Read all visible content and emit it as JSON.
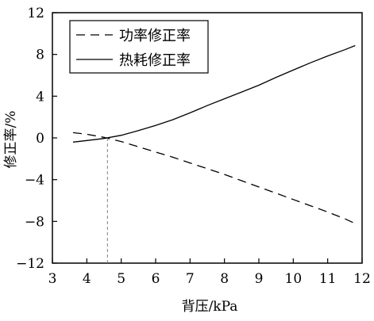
{
  "chart_data": {
    "type": "line",
    "xlabel": "背压/kPa",
    "ylabel": "修正率/%",
    "xlim": [
      3,
      12
    ],
    "ylim": [
      -12,
      12
    ],
    "xticks": [
      3,
      4,
      5,
      6,
      7,
      8,
      9,
      10,
      11,
      12
    ],
    "yticks": [
      -12,
      -8,
      -4,
      0,
      4,
      8,
      12
    ],
    "xtick_labels": [
      "3",
      "4",
      "5",
      "6",
      "7",
      "8",
      "9",
      "10",
      "11",
      "12"
    ],
    "ytick_labels": [
      "−12",
      "−8",
      "−4",
      "0",
      "4",
      "8",
      "12"
    ],
    "grid": false,
    "legend_position": "top-left",
    "series": [
      {
        "name": "功率修正率",
        "style": "dashed",
        "color": "#000000",
        "x": [
          3.6,
          4.0,
          4.5,
          5.0,
          5.5,
          6.0,
          6.5,
          7.0,
          7.5,
          8.0,
          8.5,
          9.0,
          9.5,
          10.0,
          10.5,
          11.0,
          11.5,
          11.8
        ],
        "y": [
          0.5,
          0.35,
          0.05,
          -0.35,
          -0.85,
          -1.35,
          -1.85,
          -2.4,
          -2.95,
          -3.5,
          -4.1,
          -4.7,
          -5.3,
          -5.9,
          -6.5,
          -7.1,
          -7.75,
          -8.2
        ]
      },
      {
        "name": "热耗修正率",
        "style": "solid",
        "color": "#000000",
        "x": [
          3.6,
          4.0,
          4.5,
          5.0,
          5.5,
          6.0,
          6.5,
          7.0,
          7.5,
          8.0,
          8.5,
          9.0,
          9.5,
          10.0,
          10.5,
          11.0,
          11.5,
          11.8
        ],
        "y": [
          -0.4,
          -0.25,
          -0.05,
          0.25,
          0.7,
          1.2,
          1.75,
          2.4,
          3.1,
          3.75,
          4.4,
          5.05,
          5.8,
          6.5,
          7.2,
          7.85,
          8.45,
          8.85
        ]
      }
    ],
    "reference_line": {
      "x": 4.6,
      "style": "dashed",
      "color": "#808080"
    }
  }
}
